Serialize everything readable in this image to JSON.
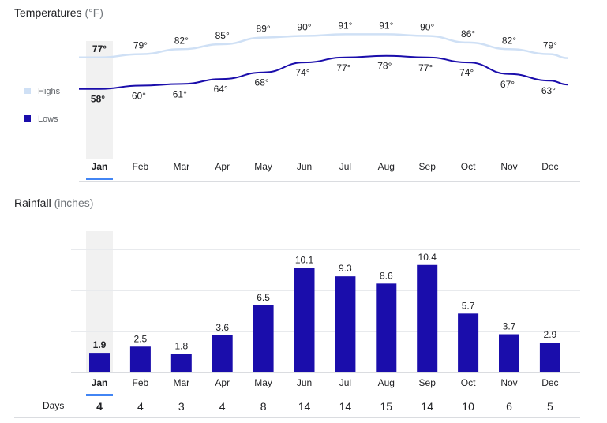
{
  "temperature_section": {
    "title": "Temperatures",
    "unit": "(°F)"
  },
  "rainfall_section": {
    "title": "Rainfall",
    "unit": "(inches)"
  },
  "days_label": "Days",
  "selected_month_index": 0,
  "colors": {
    "highs": "#cfe0f5",
    "lows": "#1a0dab",
    "bar": "#1a0dab",
    "selected_band": "#f1f1f1",
    "selected_underline": "#4285f4",
    "text": "#202124",
    "muted": "#5f6368",
    "grid": "#e8eaed"
  },
  "chart_data": [
    {
      "type": "line",
      "title": "Temperatures",
      "categories": [
        "Jan",
        "Feb",
        "Mar",
        "Apr",
        "May",
        "Jun",
        "Jul",
        "Aug",
        "Sep",
        "Oct",
        "Nov",
        "Dec"
      ],
      "series": [
        {
          "name": "Highs",
          "values": [
            77,
            79,
            82,
            85,
            89,
            90,
            91,
            91,
            90,
            86,
            82,
            79
          ]
        },
        {
          "name": "Lows",
          "values": [
            58,
            60,
            61,
            64,
            68,
            74,
            77,
            78,
            77,
            74,
            67,
            63
          ]
        }
      ],
      "unit_suffix": "°",
      "legend": "left"
    },
    {
      "type": "bar",
      "title": "Rainfall",
      "categories": [
        "Jan",
        "Feb",
        "Mar",
        "Apr",
        "May",
        "Jun",
        "Jul",
        "Aug",
        "Sep",
        "Oct",
        "Nov",
        "Dec"
      ],
      "values": [
        1.9,
        2.5,
        1.8,
        3.6,
        6.5,
        10.1,
        9.3,
        8.6,
        10.4,
        5.7,
        3.7,
        2.9
      ],
      "days": [
        4,
        4,
        3,
        4,
        8,
        14,
        14,
        15,
        14,
        10,
        6,
        5
      ],
      "grid": true
    }
  ]
}
